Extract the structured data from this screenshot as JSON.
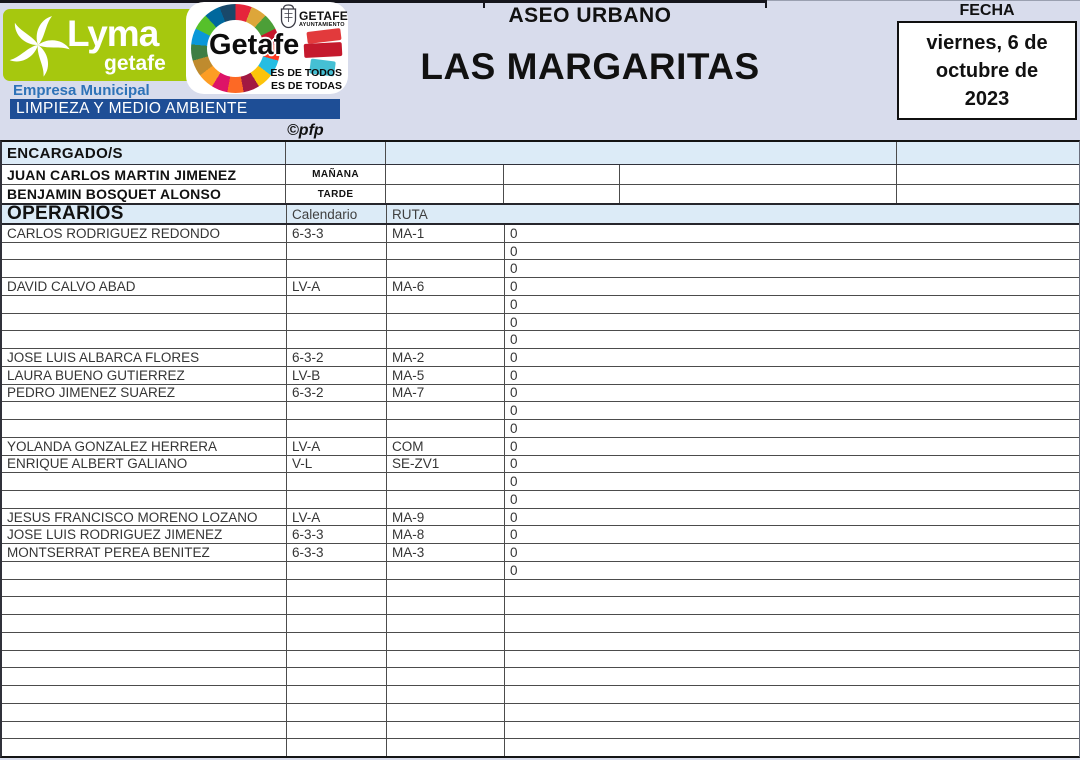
{
  "page": {
    "background": "#d8dcec"
  },
  "branding": {
    "lyma_brand": "Lyma",
    "lyma_sub": "getafe",
    "empresa": "Empresa Municipal",
    "department": "LIMPIEZA Y MEDIO AMBIENTE",
    "copyright": "©pfp",
    "getafe": {
      "brand": "Getafe",
      "city": "GETAFE",
      "city_sub": "AYUNTAMIENTO",
      "slogan_line1": "ES DE TODOS",
      "slogan_line2": "ES DE TODAS"
    },
    "colors": {
      "lyma_green": "#a6c80e",
      "bar_blue": "#1e4e96",
      "empresa_blue": "#2e73b8"
    }
  },
  "header": {
    "service_title": "ASEO URBANO",
    "zone_title": "LAS MARGARITAS",
    "fecha_label": "FECHA",
    "fecha_value": "viernes, 6 de octubre de 2023"
  },
  "table": {
    "colors": {
      "header_fill": "#dcebf7",
      "grid": "#4c4c4c"
    },
    "encargados": {
      "title": "ENCARGADO/S",
      "rows": [
        {
          "name": "JUAN CARLOS MARTIN JIMENEZ",
          "shift": "MAÑANA"
        },
        {
          "name": "BENJAMIN BOSQUET ALONSO",
          "shift": "TARDE"
        }
      ]
    },
    "operarios": {
      "title": "OPERARIOS",
      "calendar_header": "Calendario",
      "route_header": "RUTA",
      "rows": [
        {
          "name": "CARLOS RODRIGUEZ REDONDO",
          "calendario": "6-3-3",
          "ruta": "MA-1",
          "value": "0"
        },
        {
          "name": "",
          "calendario": "",
          "ruta": "",
          "value": "0"
        },
        {
          "name": "",
          "calendario": "",
          "ruta": "",
          "value": "0"
        },
        {
          "name": "DAVID CALVO ABAD",
          "calendario": "LV-A",
          "ruta": "MA-6",
          "value": "0"
        },
        {
          "name": "",
          "calendario": "",
          "ruta": "",
          "value": "0"
        },
        {
          "name": "",
          "calendario": "",
          "ruta": "",
          "value": "0"
        },
        {
          "name": "",
          "calendario": "",
          "ruta": "",
          "value": "0"
        },
        {
          "name": "JOSE LUIS ALBARCA FLORES",
          "calendario": "6-3-2",
          "ruta": "MA-2",
          "value": "0"
        },
        {
          "name": "LAURA BUENO GUTIERREZ",
          "calendario": "LV-B",
          "ruta": "MA-5",
          "value": "0"
        },
        {
          "name": "PEDRO JIMENEZ SUAREZ",
          "calendario": "6-3-2",
          "ruta": "MA-7",
          "value": "0"
        },
        {
          "name": "",
          "calendario": "",
          "ruta": "",
          "value": "0"
        },
        {
          "name": "",
          "calendario": "",
          "ruta": "",
          "value": "0"
        },
        {
          "name": "YOLANDA GONZALEZ HERRERA",
          "calendario": "LV-A",
          "ruta": "COM",
          "value": "0"
        },
        {
          "name": "ENRIQUE ALBERT GALIANO",
          "calendario": "V-L",
          "ruta": "SE-ZV1",
          "value": "0"
        },
        {
          "name": "",
          "calendario": "",
          "ruta": "",
          "value": "0"
        },
        {
          "name": "",
          "calendario": "",
          "ruta": "",
          "value": "0"
        },
        {
          "name": "JESUS FRANCISCO MORENO LOZANO",
          "calendario": "LV-A",
          "ruta": "MA-9",
          "value": "0"
        },
        {
          "name": "JOSE LUIS RODRIGUEZ JIMENEZ",
          "calendario": "6-3-3",
          "ruta": "MA-8",
          "value": "0"
        },
        {
          "name": "MONTSERRAT PEREA BENITEZ",
          "calendario": "6-3-3",
          "ruta": "MA-3",
          "value": "0"
        },
        {
          "name": "",
          "calendario": "",
          "ruta": "",
          "value": "0"
        }
      ],
      "empty_row_count": 10
    }
  }
}
